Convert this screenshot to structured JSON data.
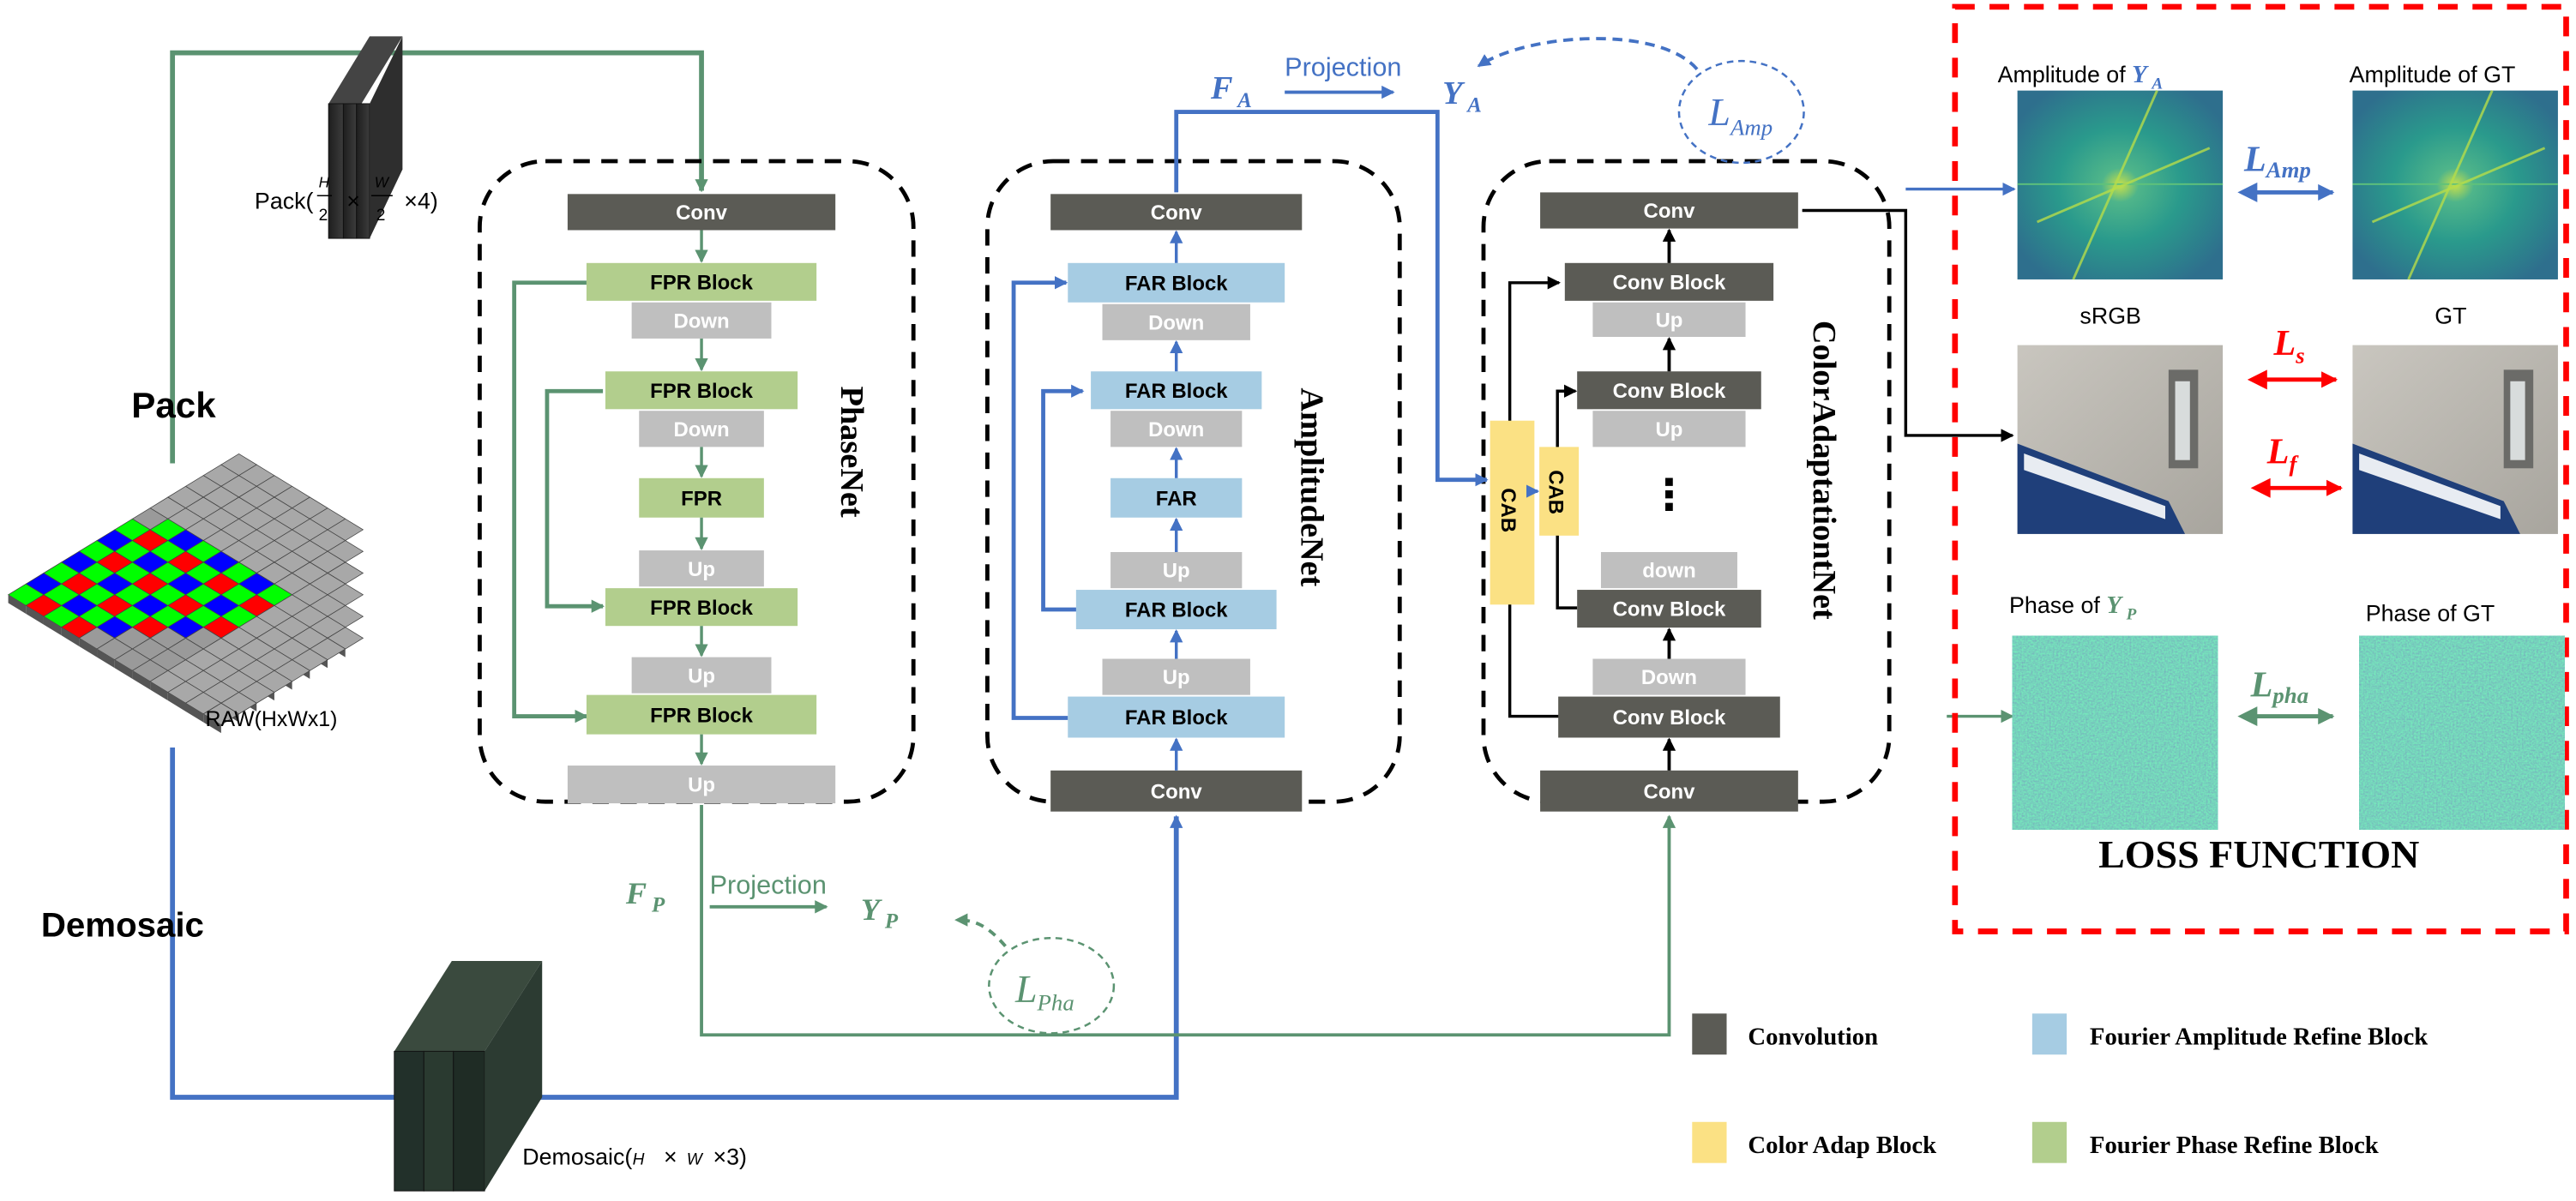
{
  "colors": {
    "convolution": "#5b5b55",
    "fourier_phase_refine": "#b2ce8d",
    "fourier_amplitude_refine": "#a6cce3",
    "color_adap": "#fbe184",
    "resample": "#bfbfbf",
    "phase_path": "#5b9371",
    "amplitude_path": "#4472c4",
    "spatial_loss": "#ff0000"
  },
  "inputs": {
    "pack_label": "Pack",
    "pack_shape": {
      "prefix": "Pack(",
      "h": "H",
      "h_den": "2",
      "times1": "×",
      "w": "W",
      "w_den": "2",
      "rest": "×4)"
    },
    "raw_label": "RAW(HxWx1)",
    "demosaic_label": "Demosaic",
    "demosaic_shape": {
      "prefix": "Demosaic(",
      "h": "H",
      "times1": "×",
      "w": "W",
      "rest": "×3)"
    }
  },
  "phasenet": {
    "title": "PhaseNet",
    "blocks": [
      "Conv",
      "FPR Block",
      "Down",
      "FPR Block",
      "Down",
      "FPR",
      "Up",
      "FPR Block",
      "Up",
      "FPR Block",
      "Up"
    ]
  },
  "amplitudenet": {
    "title": "AmplitudeNet",
    "blocks": [
      "Conv",
      "FAR Block",
      "Down",
      "FAR Block",
      "Down",
      "FAR",
      "Up",
      "FAR Block",
      "Up",
      "FAR Block",
      "Conv"
    ]
  },
  "coloradaptationnet": {
    "title": "ColorAdaptationtNet",
    "blocks": [
      "Conv",
      "Conv Block",
      "Up",
      "Conv Block",
      "Up",
      "⋮",
      "down",
      "Conv Block",
      "Down",
      "Conv Block",
      "Conv"
    ],
    "cab_labels": [
      "CAB",
      "CAB"
    ]
  },
  "projections": {
    "amplitude": {
      "feature": "F",
      "feature_sub": "A",
      "label": "Projection",
      "output": "Y",
      "output_sub": "A",
      "loss": "L",
      "loss_sub": "Amp"
    },
    "phase": {
      "feature": "F",
      "feature_sub": "P",
      "label": "Projection",
      "output": "Y",
      "output_sub": "P",
      "loss": "L",
      "loss_sub": "Pha"
    }
  },
  "loss_panel": {
    "title": "LOSS FUNCTION",
    "amplitude_pred": {
      "prefix": "Amplitude of ",
      "var": "Y",
      "sub": "A"
    },
    "amplitude_gt": "Amplitude of GT",
    "srgb": "sRGB",
    "gt": "GT",
    "phase_pred": {
      "prefix": "Phase of ",
      "var": "Y",
      "sub": "P"
    },
    "phase_gt": "Phase of GT",
    "losses": {
      "amp": {
        "main": "L",
        "sub": "Amp"
      },
      "s": {
        "main": "L",
        "sub": "s"
      },
      "f": {
        "main": "L",
        "sub": "f"
      },
      "pha": {
        "main": "L",
        "sub": "pha"
      }
    }
  },
  "legend": [
    {
      "label": "Convolution",
      "color": "#5b5b55"
    },
    {
      "label": "Fourier Amplitude Refine Block",
      "color": "#a6cce3"
    },
    {
      "label": "Color Adap Block",
      "color": "#fbe184"
    },
    {
      "label": "Fourier Phase Refine Block",
      "color": "#b2ce8d"
    }
  ]
}
